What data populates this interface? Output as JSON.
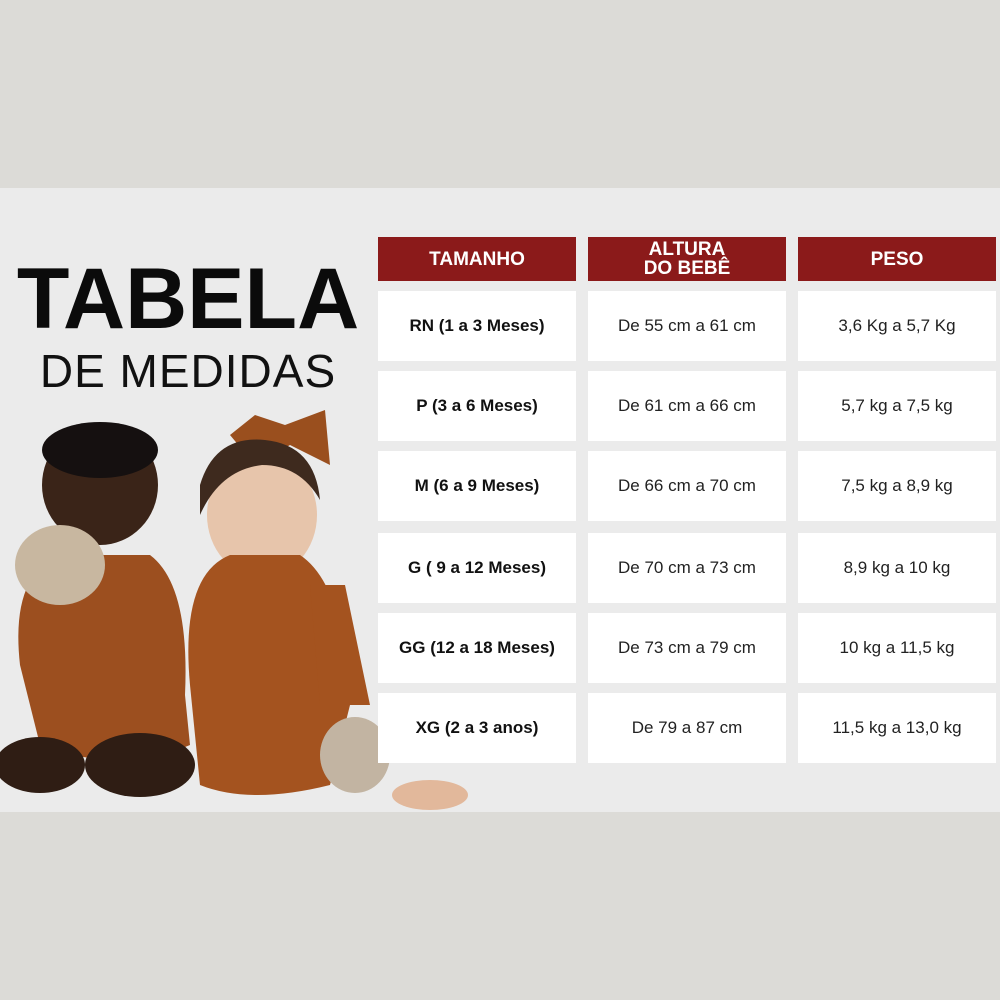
{
  "title": {
    "line1": "TABELA",
    "line2": "DE MEDIDAS"
  },
  "colors": {
    "header": "#8b1a1a",
    "band": "#ebebeb",
    "outer": "#dcdbd7"
  },
  "table": {
    "headers": [
      "TAMANHO",
      "ALTURA DO BEBÊ",
      "PESO"
    ],
    "rows": [
      {
        "size": "RN (1 a 3 Meses)",
        "height": "De 55 cm a 61 cm",
        "weight": "3,6 Kg a 5,7 Kg"
      },
      {
        "size": "P (3 a 6 Meses)",
        "height": "De 61 cm a 66 cm",
        "weight": "5,7 kg a 7,5 kg"
      },
      {
        "size": "M (6 a 9 Meses)",
        "height": "De 66 cm a 70 cm",
        "weight": "7,5 kg a 8,9 kg"
      },
      {
        "size": "G ( 9 a 12 Meses)",
        "height": "De 70 cm a 73 cm",
        "weight": "8,9 kg a 10 kg"
      },
      {
        "size": "GG (12 a 18 Meses)",
        "height": "De 73 cm a 79 cm",
        "weight": "10 kg a 11,5 kg"
      },
      {
        "size": "XG (2 a 3 anos)",
        "height": "De 79 a 87 cm",
        "weight": "11,5 kg a 13,0 kg"
      }
    ]
  }
}
